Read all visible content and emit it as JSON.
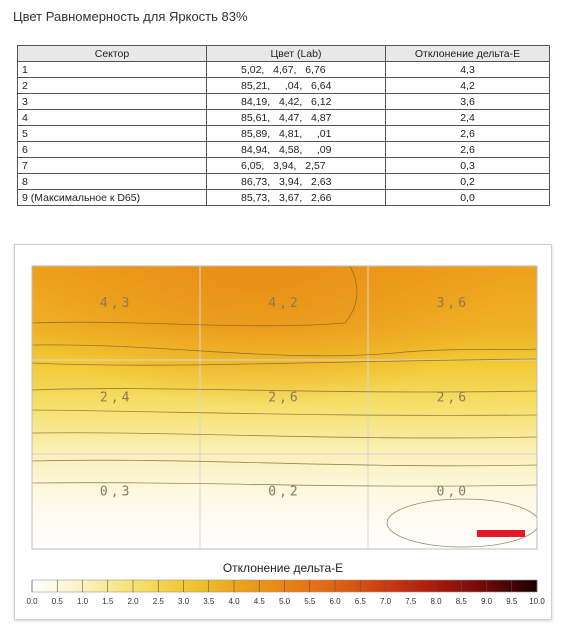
{
  "title": "Цвет Равномерность для Яркость 83%",
  "table": {
    "headers": [
      "Сектор",
      "Цвет (Lab)",
      "Отклонение дельта-E"
    ],
    "rows": [
      {
        "sector": "1",
        "lab": "5,02,   4,67,   6,76",
        "de": "4,3"
      },
      {
        "sector": "2",
        "lab": "85,21,     ,04,   6,64",
        "de": "4,2"
      },
      {
        "sector": "3",
        "lab": "84,19,   4,42,   6,12",
        "de": "3,6"
      },
      {
        "sector": "4",
        "lab": "85,61,   4,47,   4,87",
        "de": "2,4"
      },
      {
        "sector": "5",
        "lab": "85,89,   4,81,     ,01",
        "de": "2,6"
      },
      {
        "sector": "6",
        "lab": "84,94,   4,58,     ,09",
        "de": "2,6"
      },
      {
        "sector": "7",
        "lab": "6,05,   3,94,   2,57",
        "de": "0,3"
      },
      {
        "sector": "8",
        "lab": "86,73,   3,94,   2,63",
        "de": "0,2"
      },
      {
        "sector": "9 (Максимальное к D65)",
        "lab": "85,73,   3,67,   2,66",
        "de": "0,0"
      }
    ]
  },
  "chart_data": {
    "type": "heatmap",
    "title": "Отклонение дельта-E",
    "grid_rows": 3,
    "grid_cols": 3,
    "values": [
      [
        4.3,
        4.2,
        3.6
      ],
      [
        2.4,
        2.6,
        2.6
      ],
      [
        0.3,
        0.2,
        0.0
      ]
    ],
    "labels": [
      [
        "4,3",
        "4,2",
        "3,6"
      ],
      [
        "2,4",
        "2,6",
        "2,6"
      ],
      [
        "0,3",
        "0,2",
        "0,0"
      ]
    ],
    "colorbar_ticks": [
      "0.0",
      "0.5",
      "1.0",
      "1.5",
      "2.0",
      "2.5",
      "3.0",
      "3.5",
      "4.0",
      "4.5",
      "5.0",
      "5.5",
      "6.0",
      "6.5",
      "7.0",
      "7.5",
      "8.0",
      "8.5",
      "9.0",
      "9.5",
      "10.0"
    ],
    "colorbar_range": [
      0,
      10
    ],
    "colors": {
      "scale": [
        "#ffffff",
        "#fbf2c0",
        "#f6e270",
        "#f0c933",
        "#eca71c",
        "#e88414",
        "#e06411",
        "#cc3a10",
        "#a81a0c",
        "#6c0808",
        "#1a0000"
      ],
      "marker": "#e31a2a"
    }
  }
}
